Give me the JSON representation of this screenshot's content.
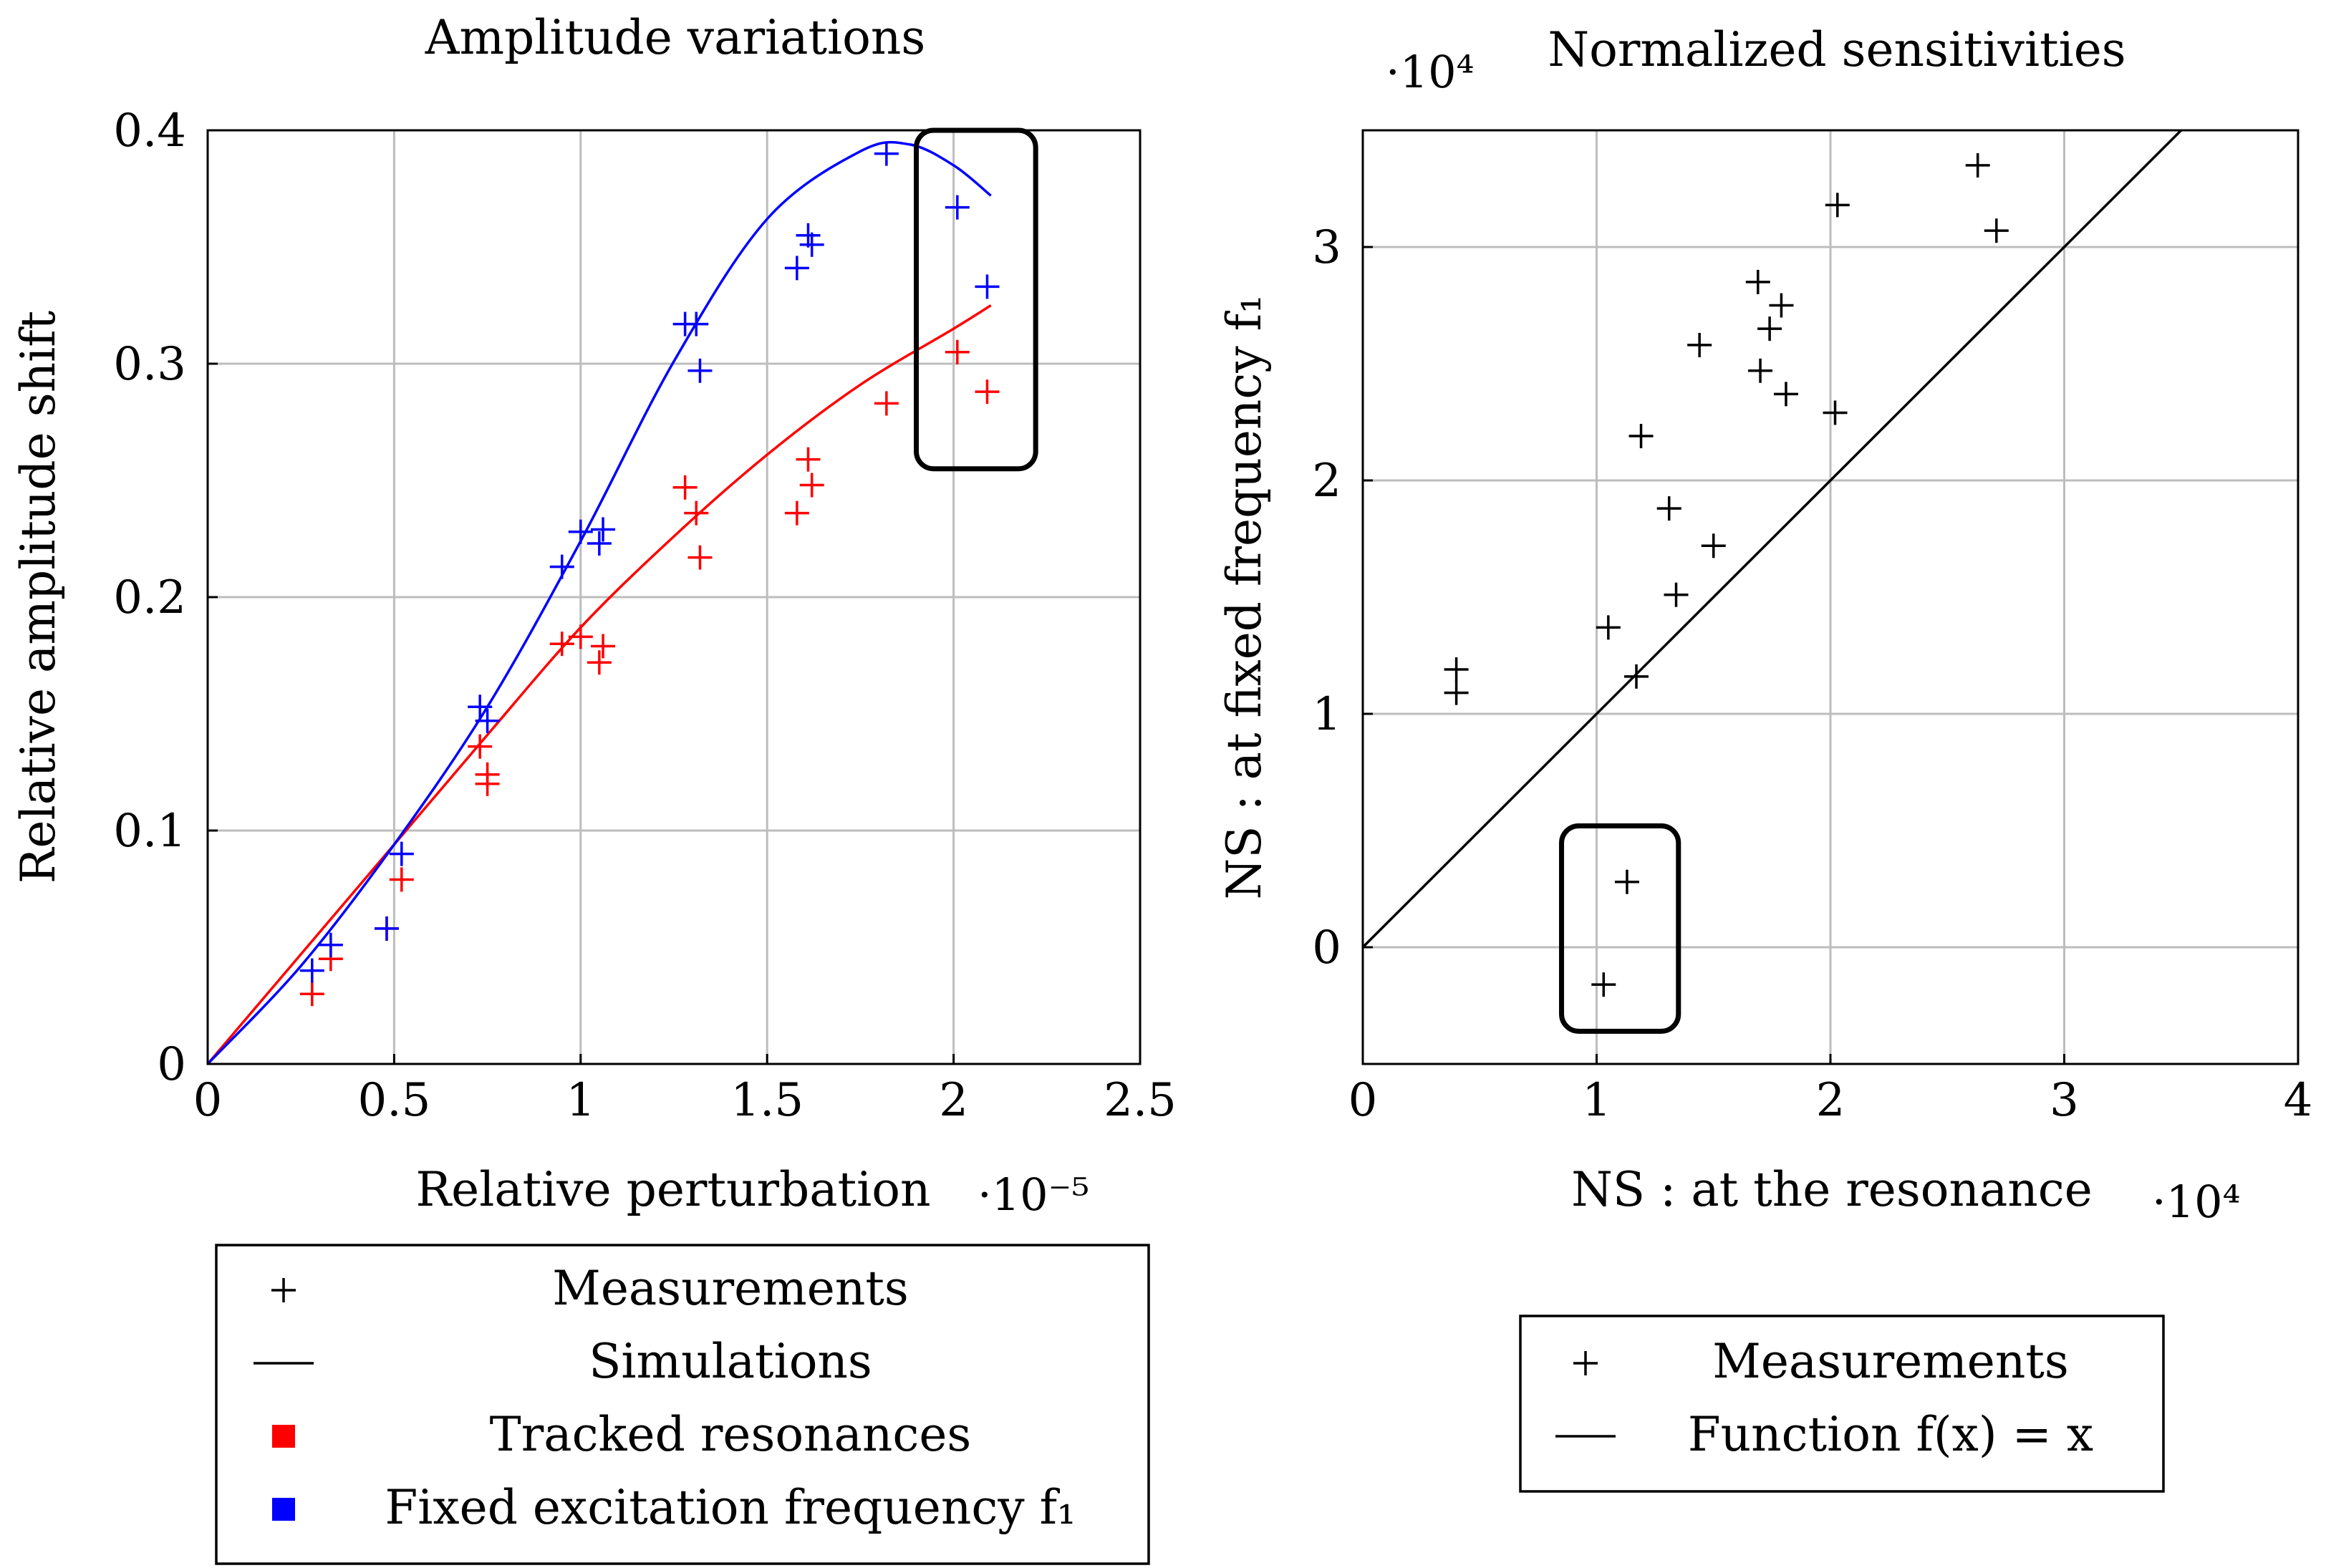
{
  "chart_data": [
    {
      "type": "scatter",
      "title": "Amplitude variations",
      "xlabel": "Relative perturbation",
      "ylabel": "Relative amplitude shift",
      "x_multiplier": "·10⁻⁵",
      "xlim": [
        0,
        2.5
      ],
      "ylim": [
        0,
        0.4
      ],
      "x_ticks": [
        0,
        0.5,
        1,
        1.5,
        2,
        2.5
      ],
      "x_tick_labels": [
        "0",
        "0.5",
        "1",
        "1.5",
        "2",
        "2.5"
      ],
      "y_ticks": [
        0,
        0.1,
        0.2,
        0.3,
        0.4
      ],
      "y_tick_labels": [
        "0",
        "0.1",
        "0.2",
        "0.3",
        "0.4"
      ],
      "grid": true,
      "series": [
        {
          "name": "Tracked resonances",
          "color": "#ff0000",
          "kind": "scatter",
          "points": [
            [
              0.28,
              0.03
            ],
            [
              0.33,
              0.045
            ],
            [
              0.48,
              0.058
            ],
            [
              0.52,
              0.079
            ],
            [
              0.73,
              0.136
            ],
            [
              0.75,
              0.12
            ],
            [
              0.75,
              0.124
            ],
            [
              0.95,
              0.18
            ],
            [
              1.0,
              0.183
            ],
            [
              1.05,
              0.172
            ],
            [
              1.06,
              0.179
            ],
            [
              1.28,
              0.247
            ],
            [
              1.31,
              0.236
            ],
            [
              1.32,
              0.217
            ],
            [
              1.58,
              0.236
            ],
            [
              1.61,
              0.259
            ],
            [
              1.62,
              0.248
            ],
            [
              1.82,
              0.283
            ],
            [
              2.01,
              0.305
            ],
            [
              2.09,
              0.288
            ]
          ]
        },
        {
          "name": "Fixed excitation frequency f1",
          "color": "#0000ff",
          "kind": "scatter",
          "points": [
            [
              0.28,
              0.04
            ],
            [
              0.33,
              0.051
            ],
            [
              0.48,
              0.058
            ],
            [
              0.52,
              0.09
            ],
            [
              0.73,
              0.153
            ],
            [
              0.75,
              0.147
            ],
            [
              0.95,
              0.213
            ],
            [
              1.0,
              0.228
            ],
            [
              1.05,
              0.223
            ],
            [
              1.06,
              0.229
            ],
            [
              1.28,
              0.317
            ],
            [
              1.31,
              0.317
            ],
            [
              1.32,
              0.297
            ],
            [
              1.58,
              0.341
            ],
            [
              1.61,
              0.355
            ],
            [
              1.62,
              0.351
            ],
            [
              1.82,
              0.39
            ],
            [
              2.01,
              0.367
            ],
            [
              2.09,
              0.333
            ]
          ]
        },
        {
          "name": "Simulations (tracked)",
          "color": "#ff0000",
          "kind": "line",
          "points": [
            [
              0,
              0
            ],
            [
              0.25,
              0.047
            ],
            [
              0.5,
              0.094
            ],
            [
              0.75,
              0.141
            ],
            [
              1.0,
              0.187
            ],
            [
              1.25,
              0.226
            ],
            [
              1.5,
              0.261
            ],
            [
              1.75,
              0.291
            ],
            [
              2.0,
              0.315
            ],
            [
              2.1,
              0.325
            ]
          ]
        },
        {
          "name": "Simulations (fixed)",
          "color": "#0000ff",
          "kind": "line",
          "points": [
            [
              0,
              0
            ],
            [
              0.25,
              0.042
            ],
            [
              0.5,
              0.094
            ],
            [
              0.75,
              0.153
            ],
            [
              1.0,
              0.224
            ],
            [
              1.25,
              0.301
            ],
            [
              1.5,
              0.362
            ],
            [
              1.75,
              0.391
            ],
            [
              1.88,
              0.394
            ],
            [
              2.0,
              0.385
            ],
            [
              2.1,
              0.372
            ]
          ]
        }
      ],
      "highlight_box": {
        "x": [
          1.9,
          2.22
        ],
        "y": [
          0.255,
          0.4
        ]
      },
      "legend": {
        "placement": "below",
        "entries": [
          {
            "label": "Measurements",
            "marker": "plus",
            "color": "#000000"
          },
          {
            "label": "Simulations",
            "marker": "line",
            "color": "#000000"
          },
          {
            "label": "Tracked resonances",
            "marker": "square",
            "color": "#ff0000"
          },
          {
            "label": "Fixed excitation frequency f₁",
            "marker": "square",
            "color": "#0000ff"
          }
        ]
      }
    },
    {
      "type": "scatter",
      "title": "Normalized sensitivities",
      "xlabel": "NS : at the resonance",
      "ylabel": "NS : at fixed frequency f₁",
      "x_multiplier": "·10⁴",
      "y_multiplier": "·10⁴",
      "xlim": [
        0,
        4
      ],
      "ylim": [
        -0.5,
        3.5
      ],
      "x_ticks": [
        0,
        1,
        2,
        3,
        4
      ],
      "x_tick_labels": [
        "0",
        "1",
        "2",
        "3",
        "4"
      ],
      "y_ticks": [
        0,
        1,
        2,
        3
      ],
      "y_tick_labels": [
        "0",
        "1",
        "2",
        "3"
      ],
      "grid": true,
      "series": [
        {
          "name": "Measurements",
          "color": "#000000",
          "kind": "scatter",
          "points": [
            [
              0.4,
              1.19
            ],
            [
              0.4,
              1.09
            ],
            [
              1.03,
              -0.16
            ],
            [
              1.05,
              1.37
            ],
            [
              1.13,
              0.28
            ],
            [
              1.17,
              1.16
            ],
            [
              1.19,
              2.19
            ],
            [
              1.31,
              1.88
            ],
            [
              1.34,
              1.51
            ],
            [
              1.44,
              2.58
            ],
            [
              1.5,
              1.72
            ],
            [
              1.69,
              2.85
            ],
            [
              1.7,
              2.47
            ],
            [
              1.74,
              2.65
            ],
            [
              1.79,
              2.75
            ],
            [
              1.81,
              2.37
            ],
            [
              2.02,
              2.29
            ],
            [
              2.03,
              3.18
            ],
            [
              2.63,
              3.35
            ],
            [
              2.71,
              3.07
            ]
          ]
        },
        {
          "name": "Function f(x) = x",
          "color": "#000000",
          "kind": "line",
          "points": [
            [
              0,
              0
            ],
            [
              3.5,
              3.5
            ]
          ]
        }
      ],
      "highlight_box": {
        "x": [
          0.85,
          1.35
        ],
        "y": [
          -0.36,
          0.52
        ]
      },
      "legend": {
        "placement": "below",
        "entries": [
          {
            "label": "Measurements",
            "marker": "plus",
            "color": "#000000"
          },
          {
            "label": "Function f(x) = x",
            "marker": "line",
            "color": "#000000"
          }
        ]
      }
    }
  ]
}
